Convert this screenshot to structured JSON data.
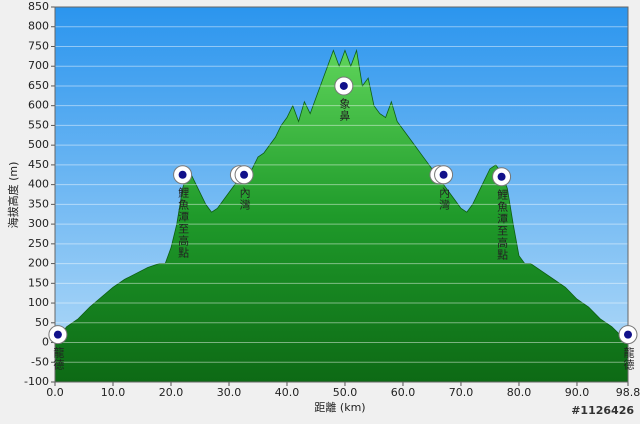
{
  "chart_data": {
    "type": "area",
    "ylabel": "海拔高度 (m)",
    "xlabel": "距離 (km)",
    "x": [
      0,
      2,
      4,
      6,
      8,
      10,
      12,
      14,
      16,
      18,
      19,
      20,
      21,
      22,
      23,
      24,
      25,
      26,
      27,
      28,
      29,
      30,
      31,
      32,
      33,
      34,
      35,
      36,
      37,
      38,
      39,
      40,
      41,
      42,
      43,
      44,
      45,
      46,
      47,
      48,
      49,
      50,
      51,
      52,
      53,
      54,
      55,
      56,
      57,
      58,
      59,
      60,
      61,
      62,
      63,
      64,
      65,
      66,
      67,
      68,
      69,
      70,
      71,
      72,
      73,
      74,
      75,
      76,
      77,
      78,
      79,
      80,
      81,
      82,
      84,
      86,
      88,
      90,
      92,
      94,
      96,
      98.8
    ],
    "series": [
      {
        "color": "#1f9a2a",
        "values": [
          0,
          40,
          60,
          90,
          115,
          140,
          160,
          175,
          190,
          200,
          200,
          240,
          300,
          390,
          440,
          410,
          380,
          350,
          330,
          340,
          360,
          380,
          400,
          420,
          430,
          440,
          470,
          480,
          500,
          520,
          550,
          570,
          600,
          560,
          610,
          580,
          620,
          660,
          700,
          740,
          700,
          740,
          700,
          740,
          650,
          670,
          600,
          580,
          570,
          610,
          560,
          540,
          520,
          500,
          480,
          460,
          440,
          420,
          400,
          380,
          360,
          340,
          330,
          350,
          380,
          410,
          440,
          450,
          430,
          390,
          300,
          220,
          200,
          200,
          180,
          160,
          140,
          110,
          90,
          60,
          40,
          0
        ]
      }
    ],
    "waypoints": [
      {
        "label": "龍德",
        "x": 0.5,
        "y": 20
      },
      {
        "label": "鯉魚潭至高點",
        "x": 22,
        "y": 425
      },
      {
        "label": null,
        "x": 31.8,
        "y": 425
      },
      {
        "label": "內灣",
        "x": 32.6,
        "y": 425
      },
      {
        "label": null,
        "x": 66.2,
        "y": 425
      },
      {
        "label": "內灣",
        "x": 67,
        "y": 425
      },
      {
        "label": "象鼻",
        "x": 49.8,
        "y": 650
      },
      {
        "label": "鯉魚潭至高點",
        "x": 77,
        "y": 420
      },
      {
        "label": "龍德",
        "x": 98.8,
        "y": 20
      }
    ],
    "xlim": [
      0,
      98.8
    ],
    "ylim": [
      -100,
      850
    ],
    "xticks": [
      {
        "value": 0,
        "label": "0.0"
      },
      {
        "value": 10,
        "label": "10.0"
      },
      {
        "value": 20,
        "label": "20.0"
      },
      {
        "value": 30,
        "label": "30.0"
      },
      {
        "value": 40,
        "label": "40.0"
      },
      {
        "value": 50,
        "label": "50.0"
      },
      {
        "value": 60,
        "label": "60.0"
      },
      {
        "value": 70,
        "label": "70.0"
      },
      {
        "value": 80,
        "label": "80.0"
      },
      {
        "value": 90,
        "label": "90.0"
      },
      98.8
    ],
    "yticks": [
      -100,
      -50,
      0,
      50,
      100,
      150,
      200,
      250,
      300,
      350,
      400,
      450,
      500,
      550,
      600,
      650,
      700,
      750,
      800,
      850
    ],
    "grid": true
  },
  "watermark": "#1126426"
}
